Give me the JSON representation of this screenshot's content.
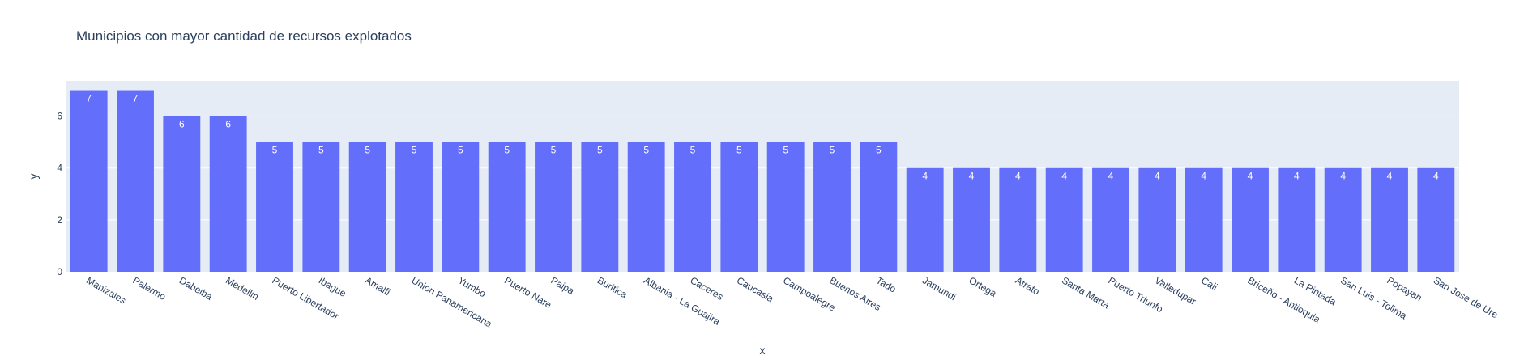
{
  "chart_data": {
    "type": "bar",
    "title": "Municipios con mayor cantidad de recursos explotados",
    "xlabel": "x",
    "ylabel": "y",
    "ylim": [
      0,
      7.36
    ],
    "yticks": [
      0,
      2,
      4,
      6
    ],
    "grid": true,
    "categories": [
      "Manizales",
      "Palermo",
      "Dabeiba",
      "Medellin",
      "Puerto Libertador",
      "Ibague",
      "Amalfi",
      "Union Panamericana",
      "Yumbo",
      "Puerto Nare",
      "Paipa",
      "Buritica",
      "Albania - La Guajira",
      "Caceres",
      "Caucasia",
      "Campoalegre",
      "Buenos Aires",
      "Tado",
      "Jamundi",
      "Ortega",
      "Atrato",
      "Santa Marta",
      "Puerto Triunfo",
      "Valledupar",
      "Cali",
      "Briceño - Antioquia",
      "La Pintada",
      "San Luis - Tolima",
      "Popayan",
      "San Jose de Ure"
    ],
    "values": [
      7,
      7,
      6,
      6,
      5,
      5,
      5,
      5,
      5,
      5,
      5,
      5,
      5,
      5,
      5,
      5,
      5,
      5,
      4,
      4,
      4,
      4,
      4,
      4,
      4,
      4,
      4,
      4,
      4,
      4
    ]
  },
  "colors": {
    "bar": "#636efa",
    "plot_bg": "#e5ecf6",
    "grid": "#ffffff",
    "text": "#2a3f5f",
    "data_label": "#ffffff"
  }
}
